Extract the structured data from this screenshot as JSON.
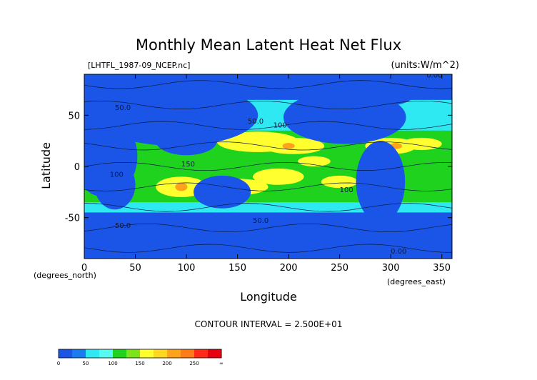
{
  "chart_data": {
    "type": "heatmap",
    "title": "Monthly Mean Latent Heat Net Flux",
    "source_label": "[LHTFL_1987-09_NCEP.nc]",
    "units_label": "(units:W/m^2)",
    "xlabel": "Longitude",
    "ylabel": "Latitude",
    "x_unit_label": "(degrees_east)",
    "y_unit_label": "(degrees_north)",
    "xlim": [
      0,
      360
    ],
    "ylim": [
      -90,
      90
    ],
    "x_ticks": [
      0,
      50,
      100,
      150,
      200,
      250,
      300,
      350
    ],
    "y_ticks": [
      -50,
      0,
      50
    ],
    "contour_interval_text": "CONTOUR INTERVAL = 2.500E+01",
    "contour_labels": [
      {
        "lon": 30,
        "lat": 55,
        "text": "50.0"
      },
      {
        "lon": 160,
        "lat": 42,
        "text": "50.0"
      },
      {
        "lon": 185,
        "lat": 38,
        "text": "100"
      },
      {
        "lon": 25,
        "lat": -10,
        "text": "100"
      },
      {
        "lon": 95,
        "lat": 0,
        "text": "150"
      },
      {
        "lon": 250,
        "lat": -25,
        "text": "100"
      },
      {
        "lon": 30,
        "lat": -60,
        "text": "50.0"
      },
      {
        "lon": 165,
        "lat": -55,
        "text": "50.0"
      },
      {
        "lon": 300,
        "lat": -85,
        "text": "0.00"
      },
      {
        "lon": 335,
        "lat": 87,
        "text": "0.00"
      }
    ],
    "legend": {
      "bins": [
        0,
        25,
        50,
        75,
        100,
        125,
        150,
        175,
        200,
        225,
        250,
        275,
        300
      ],
      "colors": [
        "#1a55e8",
        "#1b7cf0",
        "#2ee8f2",
        "#55fbf0",
        "#1ed21e",
        "#7de31a",
        "#ffff30",
        "#ffd620",
        "#ffa21c",
        "#ff7a18",
        "#ff2a18",
        "#e80010"
      ],
      "tick_labels": [
        "0",
        "50",
        "100",
        "150",
        "200",
        "250",
        "∞"
      ]
    }
  }
}
